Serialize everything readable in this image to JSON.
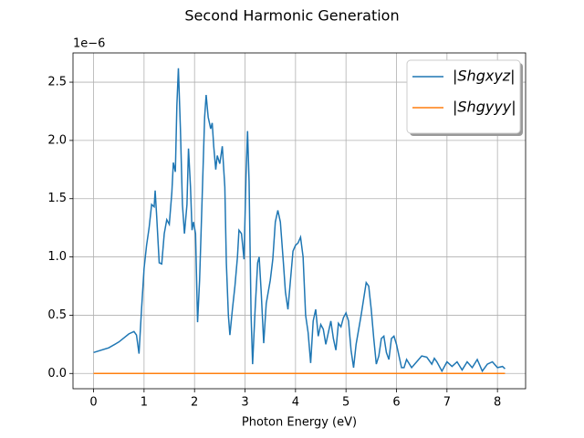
{
  "chart_data": {
    "type": "line",
    "title": "Second Harmonic Generation",
    "xlabel": "Photon Energy (eV)",
    "y_offset_label": "1e−6",
    "xlim": [
      -0.4075,
      8.5575
    ],
    "ylim": [
      -0.131,
      2.751
    ],
    "xticks": [
      0,
      1,
      2,
      3,
      4,
      5,
      6,
      7,
      8
    ],
    "yticks": [
      {
        "value": 0,
        "label": "0.0"
      },
      {
        "value": 0.5,
        "label": "0.5"
      },
      {
        "value": 1,
        "label": "1.0"
      },
      {
        "value": 1.5,
        "label": "1.5"
      },
      {
        "value": 2,
        "label": "2.0"
      },
      {
        "value": 2.5,
        "label": "2.5"
      }
    ],
    "grid": true,
    "legend": "upper right",
    "series": [
      {
        "name": "|Shgxyz|",
        "color": "#1f77b4",
        "x": [
          0,
          0.3,
          0.5,
          0.7,
          0.8,
          0.85,
          0.9,
          0.95,
          1.0,
          1.05,
          1.1,
          1.15,
          1.2,
          1.22,
          1.25,
          1.3,
          1.35,
          1.4,
          1.45,
          1.5,
          1.55,
          1.58,
          1.62,
          1.65,
          1.68,
          1.72,
          1.76,
          1.8,
          1.85,
          1.88,
          1.92,
          1.95,
          1.98,
          2.02,
          2.06,
          2.1,
          2.15,
          2.2,
          2.23,
          2.27,
          2.32,
          2.35,
          2.38,
          2.42,
          2.45,
          2.5,
          2.55,
          2.6,
          2.63,
          2.67,
          2.7,
          2.75,
          2.8,
          2.85,
          2.88,
          2.93,
          2.98,
          3.02,
          3.05,
          3.08,
          3.12,
          3.15,
          3.2,
          3.25,
          3.28,
          3.32,
          3.37,
          3.42,
          3.5,
          3.55,
          3.6,
          3.65,
          3.7,
          3.76,
          3.8,
          3.85,
          3.9,
          3.95,
          4.0,
          4.05,
          4.1,
          4.15,
          4.2,
          4.25,
          4.3,
          4.35,
          4.4,
          4.45,
          4.5,
          4.55,
          4.6,
          4.65,
          4.7,
          4.75,
          4.8,
          4.85,
          4.9,
          4.95,
          5.0,
          5.05,
          5.1,
          5.15,
          5.2,
          5.3,
          5.4,
          5.45,
          5.5,
          5.55,
          5.6,
          5.65,
          5.7,
          5.75,
          5.8,
          5.85,
          5.9,
          5.95,
          6.0,
          6.05,
          6.1,
          6.15,
          6.2,
          6.3,
          6.4,
          6.5,
          6.6,
          6.7,
          6.75,
          6.8,
          6.9,
          7.0,
          7.1,
          7.2,
          7.3,
          7.4,
          7.5,
          7.6,
          7.7,
          7.8,
          7.9,
          8.0,
          8.1,
          8.15
        ],
        "values": [
          0.18,
          0.22,
          0.27,
          0.34,
          0.36,
          0.33,
          0.17,
          0.55,
          0.9,
          1.1,
          1.25,
          1.45,
          1.43,
          1.57,
          1.35,
          0.95,
          0.94,
          1.2,
          1.32,
          1.28,
          1.55,
          1.81,
          1.73,
          2.3,
          2.62,
          2.1,
          1.45,
          1.2,
          1.45,
          1.93,
          1.6,
          1.23,
          1.3,
          1.2,
          0.44,
          0.8,
          1.5,
          2.2,
          2.39,
          2.2,
          2.1,
          2.15,
          1.95,
          1.75,
          1.87,
          1.8,
          1.95,
          1.6,
          0.95,
          0.5,
          0.33,
          0.55,
          0.75,
          1.0,
          1.23,
          1.2,
          0.98,
          1.7,
          2.08,
          1.65,
          0.5,
          0.08,
          0.55,
          0.95,
          1.0,
          0.7,
          0.26,
          0.6,
          0.8,
          0.98,
          1.3,
          1.4,
          1.3,
          0.95,
          0.7,
          0.55,
          0.8,
          1.05,
          1.1,
          1.12,
          1.17,
          1.0,
          0.5,
          0.35,
          0.09,
          0.45,
          0.55,
          0.32,
          0.42,
          0.38,
          0.25,
          0.35,
          0.45,
          0.3,
          0.2,
          0.43,
          0.4,
          0.48,
          0.52,
          0.45,
          0.2,
          0.05,
          0.25,
          0.5,
          0.78,
          0.75,
          0.55,
          0.3,
          0.08,
          0.15,
          0.3,
          0.32,
          0.18,
          0.12,
          0.3,
          0.32,
          0.25,
          0.15,
          0.05,
          0.05,
          0.12,
          0.05,
          0.1,
          0.15,
          0.14,
          0.08,
          0.13,
          0.1,
          0.02,
          0.1,
          0.06,
          0.1,
          0.03,
          0.1,
          0.05,
          0.12,
          0.02,
          0.08,
          0.1,
          0.05,
          0.06,
          0.04
        ]
      },
      {
        "name": "|Shgyyy|",
        "color": "#ff7f0e",
        "x": [
          0,
          8.15
        ],
        "values": [
          0,
          0
        ]
      }
    ]
  }
}
